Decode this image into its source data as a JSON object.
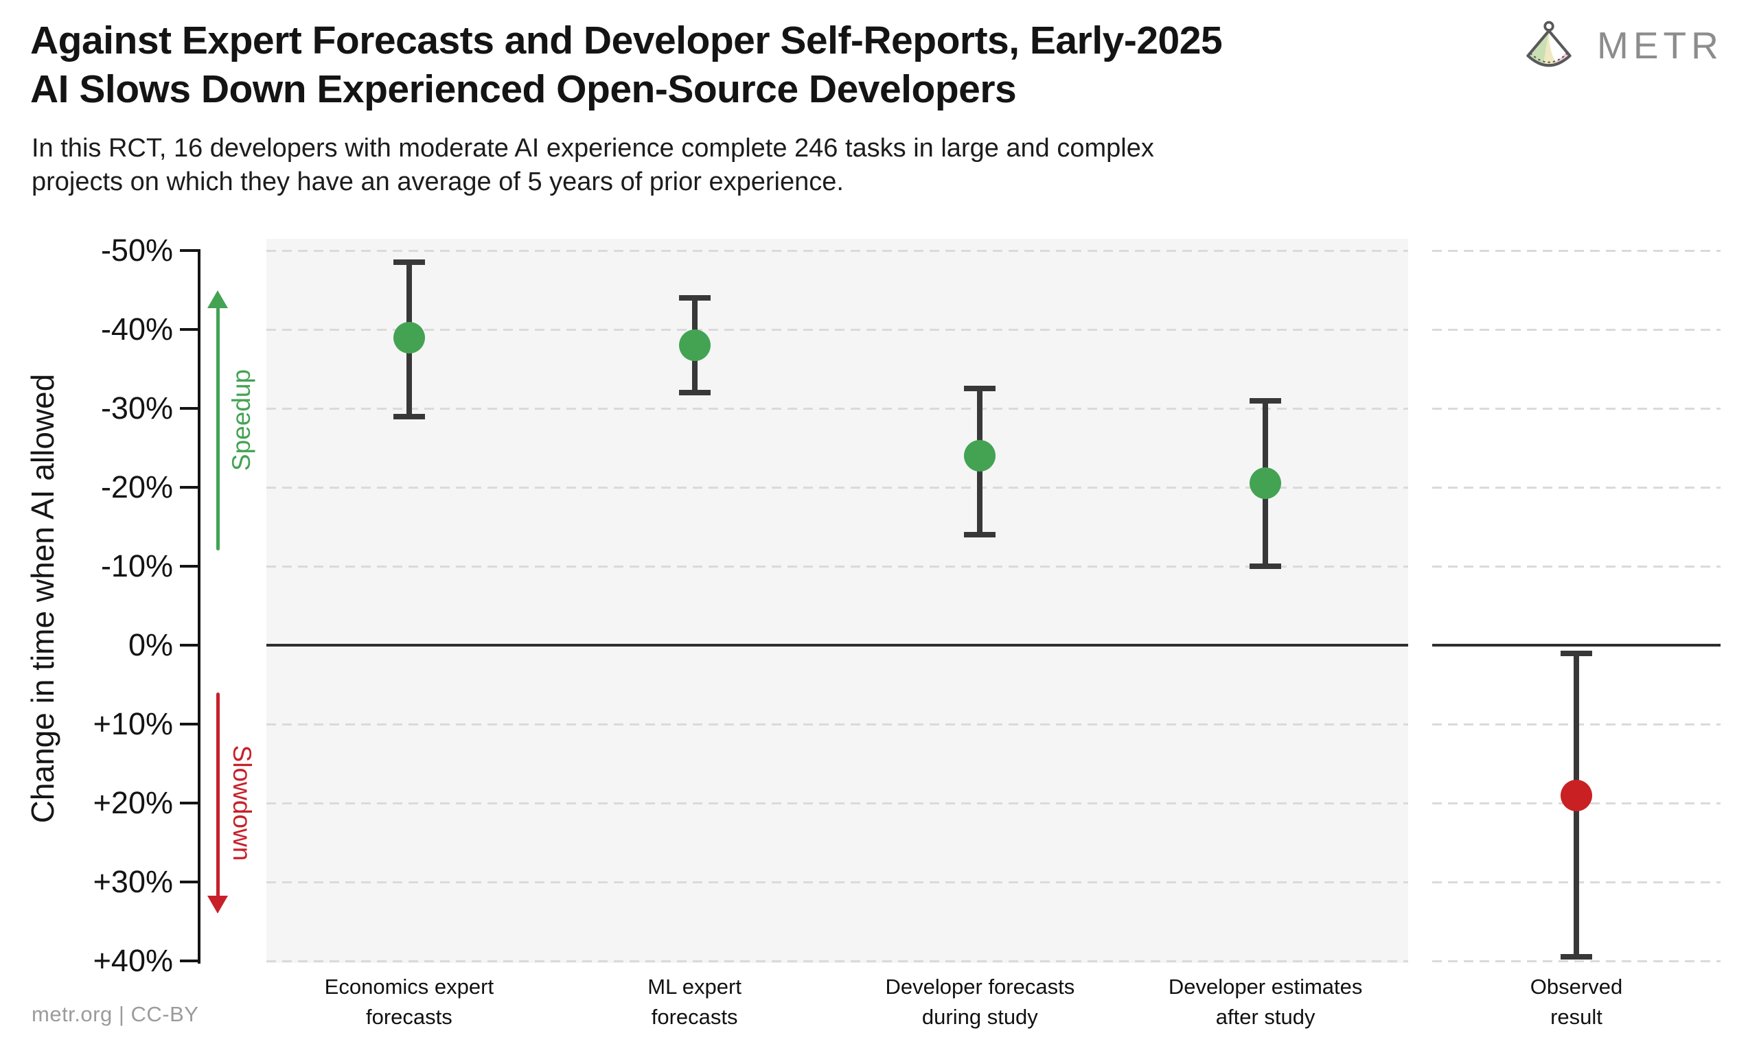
{
  "header": {
    "title_line1": "Against Expert Forecasts and Developer Self-Reports, Early-2025",
    "title_line2": "AI Slows Down Experienced Open-Source Developers",
    "subtitle_line1": "In this RCT, 16 developers with moderate AI experience complete 246 tasks in large and complex",
    "subtitle_line2": "projects on which they have an average of 5 years of prior experience.",
    "brand_name": "METR"
  },
  "footer": {
    "credit": "metr.org  |  CC-BY"
  },
  "chart_data": {
    "type": "scatter",
    "ylabel": "Change in time when AI allowed",
    "y_axis": {
      "min": -50,
      "max": 40,
      "unit": "%",
      "ticks": [
        {
          "value": -50,
          "label": "-50%"
        },
        {
          "value": -40,
          "label": "-40%"
        },
        {
          "value": -30,
          "label": "-30%"
        },
        {
          "value": -20,
          "label": "-20%"
        },
        {
          "value": -10,
          "label": "-10%"
        },
        {
          "value": 0,
          "label": "0%"
        },
        {
          "value": 10,
          "label": "+10%"
        },
        {
          "value": 20,
          "label": "+20%"
        },
        {
          "value": 30,
          "label": "+30%"
        },
        {
          "value": 40,
          "label": "+40%"
        }
      ]
    },
    "zero_line_value": 0,
    "grid": {
      "style": "dashed",
      "color": "#dadada"
    },
    "colors": {
      "speedup_green": "#43a353",
      "slowdown_red": "#c7202a",
      "errorbar": "#383838",
      "panel_background": "#f5f5f5"
    },
    "annotations": [
      {
        "id": "speedup",
        "label": "Speedup",
        "color": "#43a353",
        "direction": "up",
        "from_value": -12,
        "to_value": -45
      },
      {
        "id": "slowdown",
        "label": "Slowdown",
        "color": "#c7202a",
        "direction": "down",
        "from_value": 6,
        "to_value": 34
      }
    ],
    "points": [
      {
        "panel": "main",
        "label_line1": "Economics expert",
        "label_line2": "forecasts",
        "mean": -39,
        "ci_low": -48.5,
        "ci_high": -29,
        "color": "#43a353"
      },
      {
        "panel": "main",
        "label_line1": "ML expert",
        "label_line2": "forecasts",
        "mean": -38,
        "ci_low": -44,
        "ci_high": -32,
        "color": "#43a353"
      },
      {
        "panel": "main",
        "label_line1": "Developer forecasts",
        "label_line2": "during study",
        "mean": -24,
        "ci_low": -32.5,
        "ci_high": -14,
        "color": "#43a353"
      },
      {
        "panel": "main",
        "label_line1": "Developer estimates",
        "label_line2": "after study",
        "mean": -20.5,
        "ci_low": -31,
        "ci_high": -10,
        "color": "#43a353"
      },
      {
        "panel": "observed",
        "label_line1": "Observed",
        "label_line2": "result",
        "mean": 19,
        "ci_low": 1,
        "ci_high": 39.5,
        "color": "#c92123"
      }
    ]
  }
}
